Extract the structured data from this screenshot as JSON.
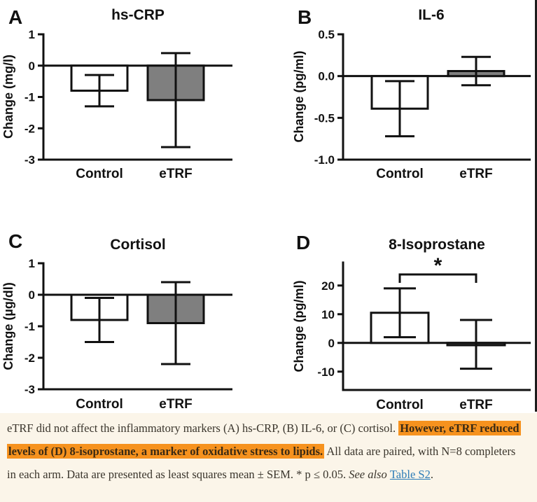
{
  "colors": {
    "highlight": "#f6921e",
    "link_blue": "#2d7cb7",
    "caption_background": "#fbf5e9",
    "bar_gray": "#7f7f7f",
    "bar_white": "#ffffff",
    "axis_black": "#111111"
  },
  "chart_data": [
    {
      "type": "bar",
      "panel": "A",
      "title": "hs-CRP",
      "ylabel": "Change (mg/l)",
      "categories": [
        "Control",
        "eTRF"
      ],
      "values": [
        -0.8,
        -1.1
      ],
      "error_high": [
        -0.3,
        0.4
      ],
      "error_low": [
        -1.3,
        -2.6
      ],
      "ylim": [
        -3,
        1
      ],
      "yticks": [
        1,
        0,
        -1,
        -2,
        -3
      ],
      "ytick_labels": [
        "1",
        "0",
        "-1",
        "-2",
        "-3"
      ],
      "bar_fills": [
        "#ffffff",
        "#7f7f7f"
      ],
      "grid": false,
      "legend": "none"
    },
    {
      "type": "bar",
      "panel": "B",
      "title": "IL-6",
      "ylabel": "Change (pg/ml)",
      "categories": [
        "Control",
        "eTRF"
      ],
      "values": [
        -0.39,
        0.06
      ],
      "error_high": [
        -0.06,
        0.23
      ],
      "error_low": [
        -0.72,
        -0.11
      ],
      "ylim": [
        -1.0,
        0.5
      ],
      "yticks": [
        0.5,
        0.0,
        -0.5,
        -1.0
      ],
      "ytick_labels": [
        "0.5",
        "0.0",
        "-0.5",
        "-1.0"
      ],
      "bar_fills": [
        "#ffffff",
        "#7f7f7f"
      ],
      "grid": false,
      "legend": "none"
    },
    {
      "type": "bar",
      "panel": "C",
      "title": "Cortisol",
      "ylabel": "Change (µg/dl)",
      "categories": [
        "Control",
        "eTRF"
      ],
      "values": [
        -0.8,
        -0.9
      ],
      "error_high": [
        -0.1,
        0.4
      ],
      "error_low": [
        -1.5,
        -2.2
      ],
      "ylim": [
        -3,
        1
      ],
      "yticks": [
        1,
        0,
        -1,
        -2,
        -3
      ],
      "ytick_labels": [
        "1",
        "0",
        "-1",
        "-2",
        "-3"
      ],
      "bar_fills": [
        "#ffffff",
        "#7f7f7f"
      ],
      "grid": false,
      "legend": "none"
    },
    {
      "type": "bar",
      "panel": "D",
      "title": "8-Isoprostane",
      "ylabel": "Change (pg/ml)",
      "categories": [
        "Control",
        "eTRF"
      ],
      "values": [
        10.5,
        -0.8
      ],
      "error_high": [
        19,
        8
      ],
      "error_low": [
        2,
        -9
      ],
      "ylim": [
        -16.4,
        28
      ],
      "yticks": [
        20,
        10,
        0,
        -10
      ],
      "ytick_labels": [
        "20",
        "10",
        "0",
        "-10"
      ],
      "bar_fills": [
        "#ffffff",
        "#7f7f7f"
      ],
      "grid": false,
      "legend": "none",
      "significance": {
        "label": "*",
        "between": [
          "Control",
          "eTRF"
        ]
      }
    }
  ],
  "caption": {
    "text_before_highlight": "eTRF did not affect the inflammatory markers (A) hs-CRP, (B) IL-6, or (C) cortisol. ",
    "highlight_text": "However, eTRF reduced levels of (D) 8-isoprostane, a marker of oxidative stress to lipids.",
    "text_after_highlight": " All data are paired, with N=8 completers in each arm. Data are presented as least squares mean ± SEM. * p ≤ 0.05. ",
    "see_also": "See also ",
    "link_text": "Table S2",
    "link_suffix": "."
  }
}
